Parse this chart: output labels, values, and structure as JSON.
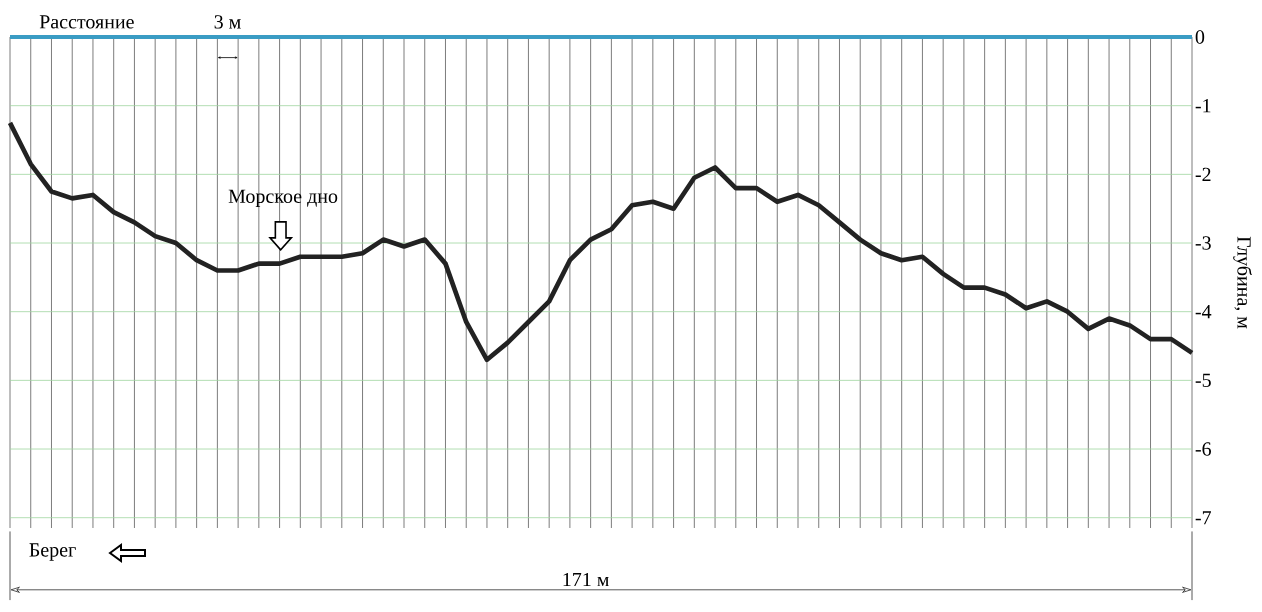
{
  "chart_data": {
    "type": "line",
    "ylabel": "Глубина, м",
    "annotations": [
      "Расстояние",
      "3 м",
      "Морское дно",
      "Берег",
      "171 м"
    ],
    "categories": [
      null,
      null,
      null,
      null,
      null,
      null,
      null,
      null,
      null,
      null,
      null,
      null,
      null,
      null,
      null,
      null,
      null,
      null,
      null,
      null,
      null,
      null,
      null,
      null,
      null,
      null,
      null,
      null,
      null,
      null,
      null,
      null,
      null,
      null,
      null,
      null,
      null,
      null,
      null,
      null,
      null,
      null,
      null,
      null,
      null,
      null,
      null,
      null,
      null,
      null,
      null,
      null,
      null,
      null,
      null,
      null,
      null,
      null
    ],
    "series": [
      {
        "color": "#222222",
        "values": [
          -1.25,
          -1.85,
          -2.25,
          -2.35,
          -2.3,
          -2.55,
          -2.7,
          -2.9,
          -3.0,
          -3.25,
          -3.4,
          -3.4,
          -3.3,
          -3.3,
          -3.2,
          -3.2,
          -3.2,
          -3.15,
          -2.95,
          -3.05,
          -2.95,
          -3.3,
          -4.15,
          -4.7,
          -4.45,
          -4.15,
          -3.85,
          -3.25,
          -2.95,
          -2.8,
          -2.45,
          -2.4,
          -2.5,
          -2.05,
          -1.9,
          -2.2,
          -2.2,
          -2.4,
          -2.3,
          -2.45,
          -2.7,
          -2.95,
          -3.15,
          -3.25,
          -3.2,
          -3.45,
          -3.65,
          -3.65,
          -3.75,
          -3.95,
          -3.85,
          -4.0,
          -4.25,
          -4.1,
          -4.2,
          -4.4,
          -4.4,
          -4.6
        ]
      }
    ],
    "ylim": [
      -7.15,
      0
    ],
    "yticks": [
      {
        "value": 0,
        "label": "0"
      },
      {
        "value": -1,
        "label": "-1"
      },
      {
        "value": -2,
        "label": "-2"
      },
      {
        "value": -3,
        "label": "-3"
      },
      {
        "value": -4,
        "label": "-4"
      },
      {
        "value": -5,
        "label": "-5"
      },
      {
        "value": -6,
        "label": "-6"
      },
      {
        "value": -7,
        "label": "-7"
      }
    ],
    "ref_lines": [
      {
        "axis": "y",
        "value": 0,
        "color": "#3a9cc4"
      }
    ],
    "grid": true,
    "tick_labels": "y",
    "marker": "none",
    "line_style": "solid"
  }
}
